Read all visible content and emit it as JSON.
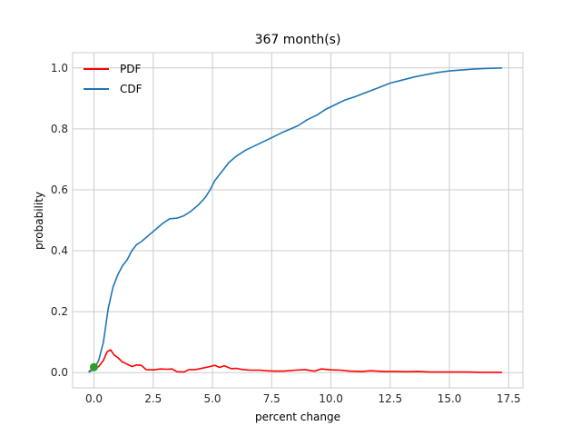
{
  "chart_data": {
    "type": "line",
    "title": "367 month(s)",
    "xlabel": "percent change",
    "ylabel": "probability",
    "xlim": [
      -0.9,
      18.1
    ],
    "ylim": [
      -0.05,
      1.05
    ],
    "xticks": [
      0.0,
      2.5,
      5.0,
      7.5,
      10.0,
      12.5,
      15.0,
      17.5
    ],
    "xtick_labels": [
      "0.0",
      "2.5",
      "5.0",
      "7.5",
      "10.0",
      "12.5",
      "15.0",
      "17.5"
    ],
    "yticks": [
      0.0,
      0.2,
      0.4,
      0.6,
      0.8,
      1.0
    ],
    "ytick_labels": [
      "0.0",
      "0.2",
      "0.4",
      "0.6",
      "0.8",
      "1.0"
    ],
    "grid": true,
    "legend_position": "top-left",
    "series": [
      {
        "name": "PDF",
        "color": "#ff0000",
        "x": [
          -0.2,
          0.0,
          0.2,
          0.4,
          0.55,
          0.7,
          0.85,
          1.0,
          1.2,
          1.4,
          1.6,
          1.8,
          2.0,
          2.2,
          2.5,
          2.8,
          3.1,
          3.3,
          3.5,
          3.8,
          4.0,
          4.3,
          4.6,
          4.9,
          5.1,
          5.3,
          5.5,
          5.8,
          6.0,
          6.3,
          6.6,
          7.0,
          7.3,
          7.6,
          8.0,
          8.5,
          8.9,
          9.3,
          9.6,
          10.0,
          10.4,
          10.8,
          11.3,
          11.7,
          12.2,
          12.7,
          13.2,
          13.7,
          14.2,
          14.8,
          15.3,
          15.8,
          16.3,
          16.8,
          17.2
        ],
        "y": [
          0.005,
          0.012,
          0.02,
          0.04,
          0.068,
          0.075,
          0.058,
          0.05,
          0.035,
          0.028,
          0.02,
          0.025,
          0.024,
          0.01,
          0.009,
          0.012,
          0.011,
          0.012,
          0.003,
          0.002,
          0.01,
          0.01,
          0.015,
          0.02,
          0.024,
          0.017,
          0.022,
          0.013,
          0.014,
          0.01,
          0.008,
          0.008,
          0.006,
          0.005,
          0.005,
          0.008,
          0.01,
          0.005,
          0.012,
          0.009,
          0.008,
          0.005,
          0.004,
          0.006,
          0.004,
          0.004,
          0.003,
          0.004,
          0.002,
          0.002,
          0.002,
          0.002,
          0.001,
          0.001,
          0.001
        ]
      },
      {
        "name": "CDF",
        "color": "#1f77b4",
        "x": [
          -0.2,
          0.0,
          0.2,
          0.4,
          0.6,
          0.8,
          1.0,
          1.2,
          1.4,
          1.6,
          1.8,
          2.0,
          2.3,
          2.6,
          2.9,
          3.2,
          3.5,
          3.8,
          4.1,
          4.4,
          4.7,
          4.9,
          5.1,
          5.4,
          5.7,
          6.0,
          6.4,
          6.8,
          7.2,
          7.6,
          8.0,
          8.3,
          8.6,
          9.0,
          9.4,
          9.8,
          10.2,
          10.6,
          11.0,
          11.5,
          12.0,
          12.5,
          13.0,
          13.5,
          14.0,
          14.5,
          15.0,
          15.5,
          16.0,
          16.5,
          17.2
        ],
        "y": [
          0.002,
          0.012,
          0.04,
          0.1,
          0.21,
          0.28,
          0.32,
          0.35,
          0.37,
          0.4,
          0.42,
          0.43,
          0.45,
          0.47,
          0.49,
          0.505,
          0.507,
          0.515,
          0.53,
          0.55,
          0.575,
          0.6,
          0.63,
          0.66,
          0.69,
          0.71,
          0.73,
          0.745,
          0.76,
          0.775,
          0.79,
          0.8,
          0.81,
          0.83,
          0.845,
          0.865,
          0.88,
          0.895,
          0.905,
          0.92,
          0.935,
          0.95,
          0.96,
          0.97,
          0.978,
          0.985,
          0.99,
          0.993,
          0.996,
          0.998,
          1.0
        ]
      }
    ],
    "markers": [
      {
        "name": "start-point",
        "x": 0.0,
        "y": 0.018,
        "color": "#2ca02c"
      }
    ]
  }
}
